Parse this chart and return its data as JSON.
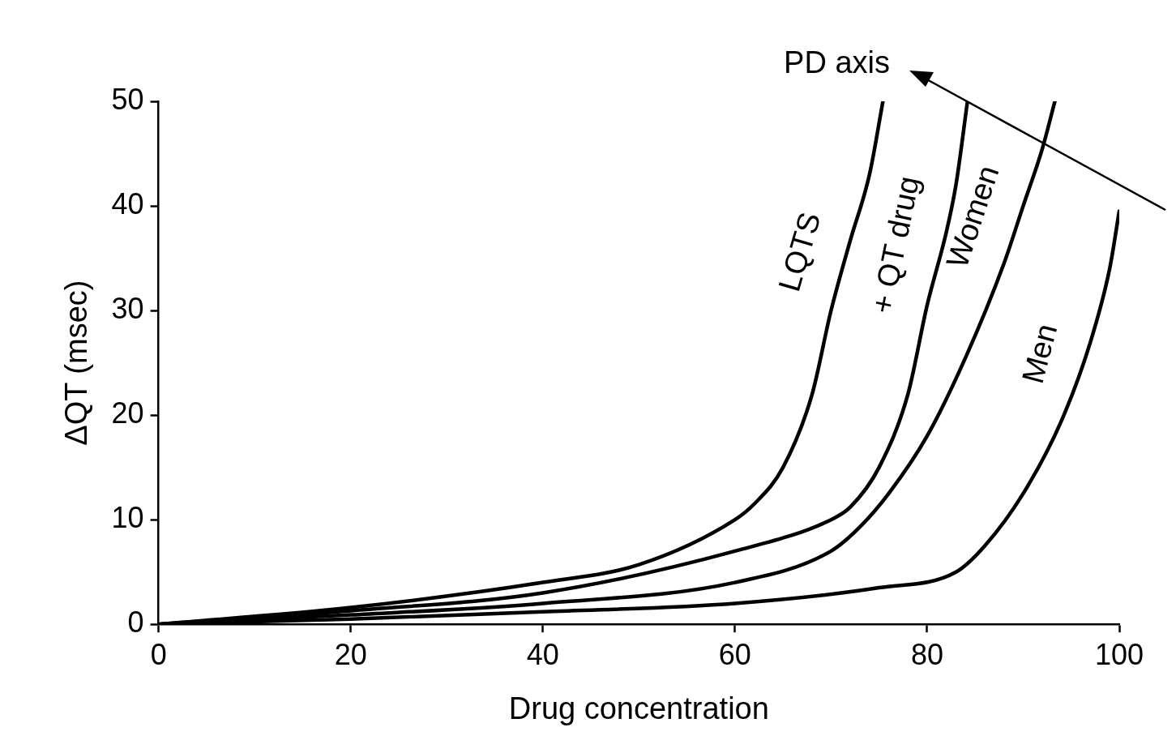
{
  "chart_data": {
    "type": "line",
    "xlabel": "Drug concentration",
    "ylabel": "ΔQT (msec)",
    "xlim": [
      0,
      100
    ],
    "xticks": [
      0,
      20,
      40,
      60,
      80,
      100
    ],
    "ylim": [
      0,
      50
    ],
    "yticks": [
      0,
      10,
      20,
      30,
      40,
      50
    ],
    "grid": false,
    "legend": false,
    "marker": "none",
    "line_style": "solid",
    "series": [
      {
        "name": "LQTS",
        "color": "#000000",
        "x": [
          0,
          20,
          40,
          50,
          60,
          62,
          65,
          68,
          70,
          72,
          74,
          75.4
        ],
        "values": [
          0,
          1.6,
          4,
          5.7,
          10,
          11.5,
          15,
          21.9,
          30,
          36.7,
          43,
          50
        ]
      },
      {
        "name": "+ QT drug",
        "color": "#000000",
        "x": [
          0,
          20,
          40,
          60,
          70,
          72,
          75,
          78,
          80,
          82,
          83,
          84.2
        ],
        "values": [
          0,
          1.3,
          3,
          7,
          10,
          11.2,
          15,
          22,
          30.5,
          37.5,
          42,
          50
        ]
      },
      {
        "name": "Women",
        "color": "#000000",
        "x": [
          0,
          20,
          40,
          60,
          70,
          73,
          76,
          80,
          84,
          88,
          90,
          92,
          93.3
        ],
        "values": [
          0,
          0.9,
          2,
          4,
          7,
          9.3,
          12.5,
          18,
          25.5,
          34.5,
          40,
          45.5,
          50
        ]
      },
      {
        "name": "Men",
        "color": "#000000",
        "x": [
          0,
          20,
          40,
          60,
          75,
          83,
          86,
          90,
          94,
          97,
          99,
          100
        ],
        "values": [
          0,
          0.5,
          1.2,
          2,
          3.5,
          5,
          7.5,
          12.5,
          19.5,
          27,
          34,
          39.5
        ]
      }
    ],
    "annotations": [
      "PD axis"
    ]
  }
}
